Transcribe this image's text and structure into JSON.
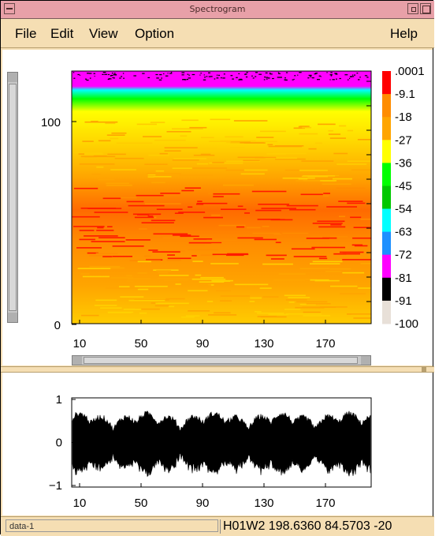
{
  "window": {
    "title": "Spectrogram"
  },
  "menu": {
    "file": "File",
    "edit": "Edit",
    "view": "View",
    "option": "Option",
    "help": "Help"
  },
  "spectrogram": {
    "y_ticks": [
      "100",
      "0"
    ],
    "x_ticks": [
      "10",
      "50",
      "90",
      "130",
      "170"
    ],
    "colorbar_labels": [
      ".0001",
      "-9.1",
      "-18",
      "-27",
      "-36",
      "-45",
      "-54",
      "-63",
      "-72",
      "-81",
      "-91",
      "-100"
    ],
    "colorbar_colors": [
      "#ff0000",
      "#ff8c00",
      "#ffa500",
      "#ffff00",
      "#00ff00",
      "#00c800",
      "#00ffff",
      "#1e90ff",
      "#ff00ff",
      "#000000",
      "#e8e0d8"
    ]
  },
  "waveform": {
    "y_ticks": [
      "1",
      "0",
      "−1"
    ],
    "x_ticks": [
      "10",
      "50",
      "90",
      "130",
      "170"
    ]
  },
  "status": {
    "left": "data-1",
    "right": "H01W2   198.6360   84.5703   -20"
  }
}
